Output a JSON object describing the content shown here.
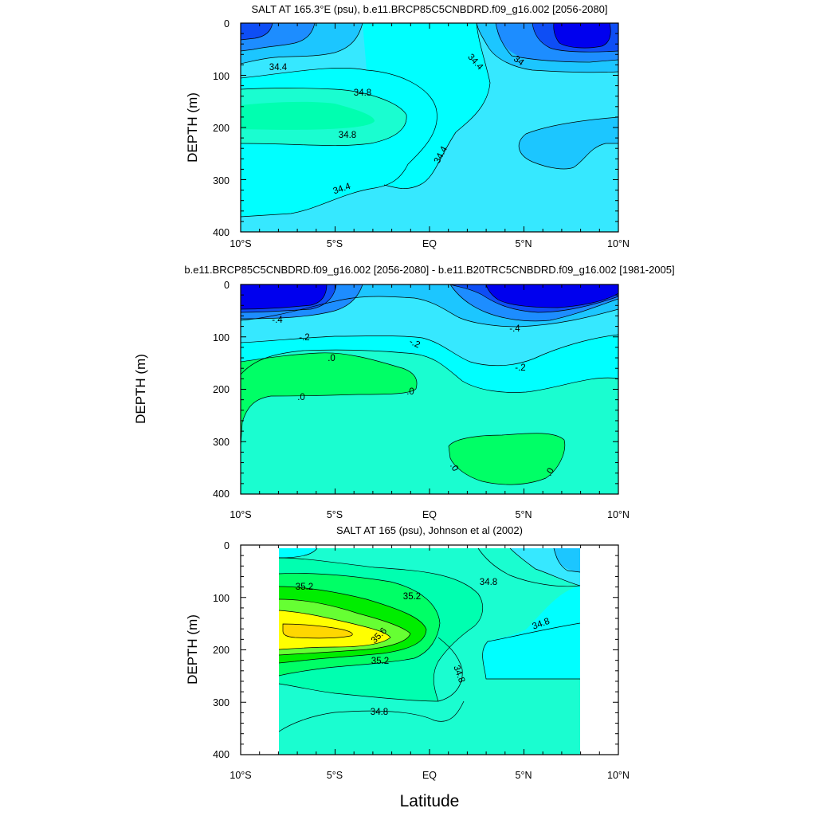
{
  "chart_data": [
    {
      "type": "contour",
      "title": "SALT AT 165.3°E (psu), b.e11.BRCP85C5CNBDRD.f09_g16.002 [2056-2080]",
      "xlabel": "",
      "ylabel": "DEPTH (m)",
      "xlim": [
        -10,
        10
      ],
      "ylim": [
        400,
        0
      ],
      "xticks": [
        "10°S",
        "5°S",
        "EQ",
        "5°N",
        "10°N"
      ],
      "yticks": [
        "0",
        "100",
        "200",
        "300",
        "400"
      ],
      "contour_labels": [
        {
          "text": "34.4",
          "lat": -8.1,
          "depth": 80
        },
        {
          "text": "34.8",
          "lat": -3.6,
          "depth": 128
        },
        {
          "text": "34.8",
          "lat": -4.5,
          "depth": 213
        },
        {
          "text": "34.4",
          "lat": -4.7,
          "depth": 320
        },
        {
          "text": "34.4",
          "lat": 0.6,
          "depth": 255
        },
        {
          "text": "34.4",
          "lat": 2.2,
          "depth": 72
        },
        {
          "text": "34",
          "lat": 4.5,
          "depth": 70
        }
      ],
      "fill_colors": [
        "#0000EE",
        "#0E4EF5",
        "#1D8DFF",
        "#1CC6FF",
        "#36E8FF",
        "#00FFFF",
        "#1AFDD0",
        "#00FFB0"
      ]
    },
    {
      "type": "contour",
      "title": "b.e11.BRCP85C5CNBDRD.f09_g16.002 [2056-2080] - b.e11.B20TRC5CNBDRD.f09_g16.002 [1981-2005]",
      "xlabel": "",
      "ylabel": "DEPTH (m)",
      "xlim": [
        -10,
        10
      ],
      "ylim": [
        400,
        0
      ],
      "xticks": [
        "10°S",
        "5°S",
        "EQ",
        "5°N",
        "10°N"
      ],
      "yticks": [
        "0",
        "100",
        "200",
        "300",
        "400"
      ],
      "contour_labels": [
        {
          "text": "-.4",
          "lat": -8.1,
          "depth": 62
        },
        {
          "text": "-.2",
          "lat": -6.7,
          "depth": 97
        },
        {
          "text": "-.2",
          "lat": -0.9,
          "depth": 107
        },
        {
          "text": "-.4",
          "lat": 4.6,
          "depth": 83
        },
        {
          "text": "-.2",
          "lat": 4.8,
          "depth": 158
        },
        {
          "text": ".0",
          "lat": -5.1,
          "depth": 143
        },
        {
          "text": ".0",
          "lat": -6.9,
          "depth": 210
        },
        {
          "text": ".0",
          "lat": -1.1,
          "depth": 200
        },
        {
          "text": ".0",
          "lat": 1.1,
          "depth": 345
        },
        {
          "text": ".0",
          "lat": 6.5,
          "depth": 355
        }
      ],
      "fill_colors": [
        "#0000EE",
        "#0E4EF5",
        "#1D8DFF",
        "#1CC6FF",
        "#36E8FF",
        "#00FFFF",
        "#1AFDD0",
        "#00FF66"
      ]
    },
    {
      "type": "contour",
      "title": "SALT AT 165 (psu), Johnson et al (2002)",
      "xlabel": "Latitude",
      "ylabel": "DEPTH (m)",
      "xlim": [
        -10,
        10
      ],
      "ylim": [
        400,
        0
      ],
      "xticks": [
        "10°S",
        "5°S",
        "EQ",
        "5°N",
        "10°N"
      ],
      "yticks": [
        "0",
        "100",
        "200",
        "300",
        "400"
      ],
      "data_lat_range": [
        -8,
        8
      ],
      "contour_labels": [
        {
          "text": "35.2",
          "lat": -6.6,
          "depth": 78
        },
        {
          "text": "35.2",
          "lat": -1.1,
          "depth": 97
        },
        {
          "text": "35.6",
          "lat": -2.4,
          "depth": 178
        },
        {
          "text": "35.2",
          "lat": -2.7,
          "depth": 222
        },
        {
          "text": "34.8",
          "lat": 2.9,
          "depth": 67
        },
        {
          "text": "34.8",
          "lat": 1.3,
          "depth": 250
        },
        {
          "text": "34.8",
          "lat": -2.7,
          "depth": 318
        },
        {
          "text": "34.8",
          "lat": 6.0,
          "depth": 150
        }
      ],
      "fill_colors": [
        "#1CC6FF",
        "#36E8FF",
        "#00FFFF",
        "#1AFDD0",
        "#00FFB0",
        "#00FF66",
        "#00EE00",
        "#66FF33",
        "#FFFF00",
        "#FFD700"
      ]
    }
  ]
}
